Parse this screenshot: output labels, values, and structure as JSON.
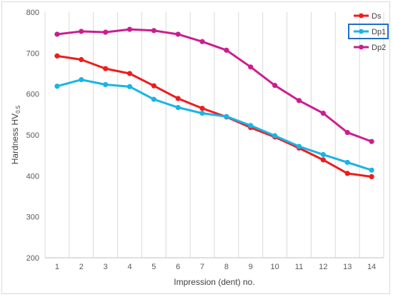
{
  "chart_data": {
    "type": "line",
    "xlabel": "Impression (dent) no.",
    "ylabel_main": "Hardness HV",
    "ylabel_subscript": "0.5",
    "categories": [
      "1",
      "2",
      "3",
      "4",
      "5",
      "6",
      "7",
      "8",
      "9",
      "10",
      "11",
      "12",
      "13",
      "14"
    ],
    "ylim": [
      200,
      800
    ],
    "yticks": [
      "200",
      "300",
      "400",
      "500",
      "600",
      "700",
      "800"
    ],
    "grid": "vertical",
    "legend_position": "top-right",
    "series": [
      {
        "name": "Ds",
        "color": "#ee1c1c",
        "values": [
          693,
          684,
          662,
          650,
          620,
          589,
          565,
          544,
          518,
          495,
          468,
          439,
          406,
          398
        ]
      },
      {
        "name": "Dp1",
        "color": "#19b4e6",
        "values": [
          619,
          635,
          623,
          618,
          587,
          567,
          553,
          545,
          523,
          498,
          472,
          452,
          433,
          414
        ]
      },
      {
        "name": "Dp2",
        "color": "#cc1d8f",
        "values": [
          746,
          753,
          751,
          758,
          755,
          746,
          728,
          707,
          666,
          621,
          584,
          553,
          506,
          484
        ]
      }
    ],
    "highlighted_legend_entry": "Dp1",
    "highlight_color": "#1f6fbf"
  }
}
